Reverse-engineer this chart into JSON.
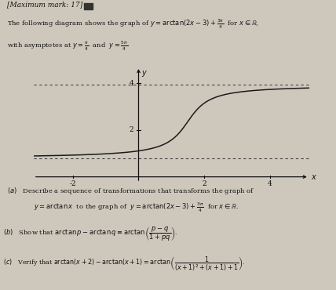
{
  "asymptote_lower": 0.7853981633974483,
  "asymptote_upper": 3.9269908169872414,
  "x_ticks": [
    -2,
    2,
    4
  ],
  "y_ticks": [
    2,
    4
  ],
  "x_min": -3.2,
  "x_max": 5.2,
  "y_min": -0.25,
  "y_max": 4.7,
  "curve_color": "#1a1a1a",
  "asymptote_color": "#444444",
  "axis_color": "#111111",
  "bg_color": "#cec8bc",
  "text_color": "#111111"
}
